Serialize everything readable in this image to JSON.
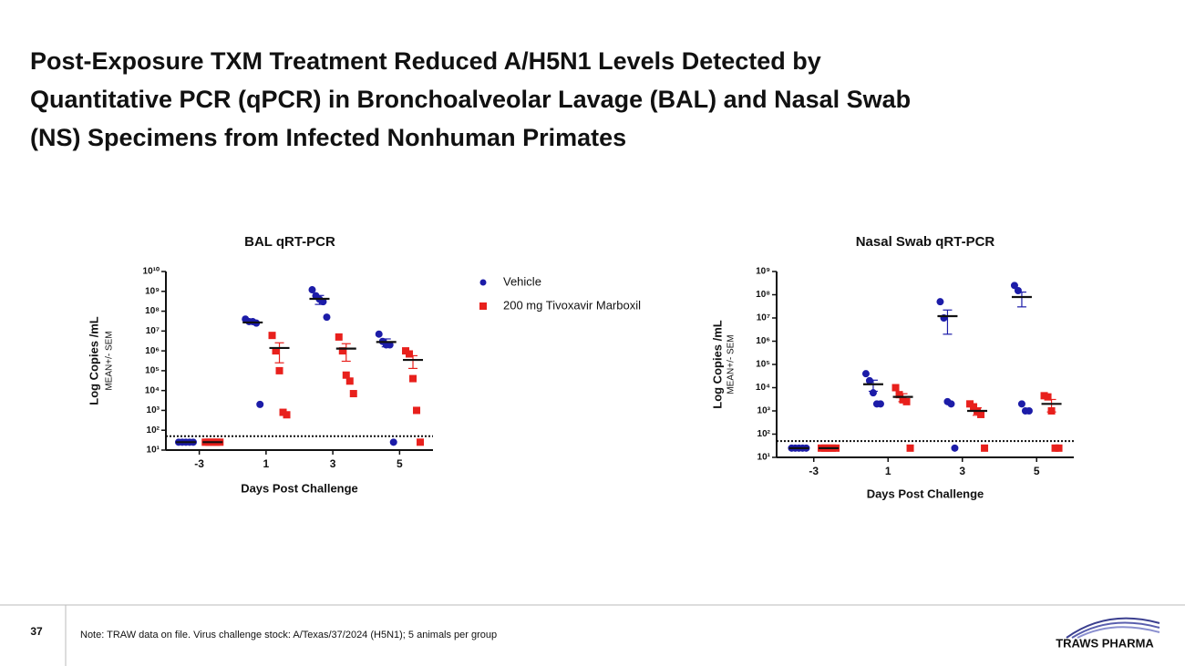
{
  "title_lines": [
    "Post-Exposure TXM Treatment Reduced A/H5N1 Levels Detected by",
    "Quantitative PCR (qPCR)  in Bronchoalveolar Lavage (BAL) and Nasal Swab",
    "(NS) Specimens from Infected Nonhuman Primates"
  ],
  "chart_data": [
    {
      "type": "scatter",
      "title": "BAL qRT-PCR",
      "xlabel": "Days Post Challenge",
      "ylabel": "Log Copies /mL",
      "ylabel2": "MEAN+/- SEM",
      "categories": [
        "-3",
        "1",
        "3",
        "5"
      ],
      "log_scale": true,
      "legend": true,
      "legend_position": "right",
      "lod": 50,
      "ylim": [
        10,
        10000000000
      ],
      "yticks": [
        {
          "value": 10,
          "label": "10¹"
        },
        {
          "value": 100,
          "label": "10²"
        },
        {
          "value": 1000,
          "label": "10³"
        },
        {
          "value": 10000,
          "label": "10⁴"
        },
        {
          "value": 100000,
          "label": "10⁵"
        },
        {
          "value": 1000000,
          "label": "10⁶"
        },
        {
          "value": 10000000,
          "label": "10⁷"
        },
        {
          "value": 100000000,
          "label": "10⁸"
        },
        {
          "value": 1000000000,
          "label": "10⁹"
        },
        {
          "value": 10000000000,
          "label": "10¹⁰"
        }
      ],
      "series": [
        {
          "name": "Vehicle",
          "color": "#1c1ca8",
          "marker": "circle",
          "points": [
            [
              25,
              25,
              25,
              25,
              25
            ],
            [
              40000000,
              30000000,
              30000000,
              25000000,
              2000
            ],
            [
              1200000000,
              600000000,
              400000000,
              300000000,
              50000000
            ],
            [
              7000000,
              3000000,
              2000000,
              2000000,
              25
            ]
          ],
          "means": [
            25,
            27000000,
            420000000,
            2800000
          ],
          "sem": [
            0,
            3000000,
            200000000,
            1200000
          ]
        },
        {
          "name": "200 mg Tivoxavir Marboxil",
          "color": "#e8201c",
          "marker": "square",
          "points": [
            [
              25,
              25,
              25,
              25,
              25
            ],
            [
              6000000,
              1000000,
              100000,
              800,
              600
            ],
            [
              5000000,
              1000000,
              60000,
              30000,
              7000
            ],
            [
              1000000,
              700000,
              40000,
              1000,
              25
            ]
          ],
          "means": [
            25,
            1400000,
            1300000,
            350000
          ],
          "sem": [
            0,
            1150000,
            1000000,
            220000
          ]
        }
      ]
    },
    {
      "type": "scatter",
      "title": "Nasal Swab qRT-PCR",
      "xlabel": "Days Post Challenge",
      "ylabel": "Log Copies /mL",
      "ylabel2": "MEAN+/- SEM",
      "categories": [
        "-3",
        "1",
        "3",
        "5"
      ],
      "log_scale": true,
      "legend": false,
      "lod": 50,
      "ylim": [
        10,
        1000000000
      ],
      "yticks": [
        {
          "value": 10,
          "label": "10¹"
        },
        {
          "value": 100,
          "label": "10²"
        },
        {
          "value": 1000,
          "label": "10³"
        },
        {
          "value": 10000,
          "label": "10⁴"
        },
        {
          "value": 100000,
          "label": "10⁵"
        },
        {
          "value": 1000000,
          "label": "10⁶"
        },
        {
          "value": 10000000,
          "label": "10⁷"
        },
        {
          "value": 100000000,
          "label": "10⁸"
        },
        {
          "value": 1000000000,
          "label": "10⁹"
        }
      ],
      "series": [
        {
          "color": "#1c1ca8",
          "marker": "circle",
          "points": [
            [
              25,
              25,
              25,
              25,
              25
            ],
            [
              40000,
              20000,
              6000,
              2000,
              2000
            ],
            [
              50000000,
              10000000,
              2500,
              2000,
              25
            ],
            [
              250000000,
              150000000,
              2000,
              1000,
              1000
            ]
          ],
          "means": [
            25,
            14000,
            12000000,
            80000000
          ],
          "sem": [
            0,
            7000,
            10000000,
            50000000
          ]
        },
        {
          "color": "#e8201c",
          "marker": "square",
          "points": [
            [
              25,
              25,
              25,
              25,
              25
            ],
            [
              10000,
              5000,
              3000,
              2500,
              25
            ],
            [
              2000,
              1500,
              1000,
              700,
              25
            ],
            [
              4500,
              4000,
              1000,
              25,
              25
            ]
          ],
          "means": [
            25,
            4000,
            1000,
            2000
          ],
          "sem": [
            0,
            1500,
            350,
            1100
          ]
        }
      ]
    }
  ],
  "footer": {
    "page": "37",
    "note": "Note: TRAW data on file. Virus challenge stock: A/Texas/37/2024 (H5N1); 5 animals per group"
  },
  "logo": "TRAWS PHARMA"
}
